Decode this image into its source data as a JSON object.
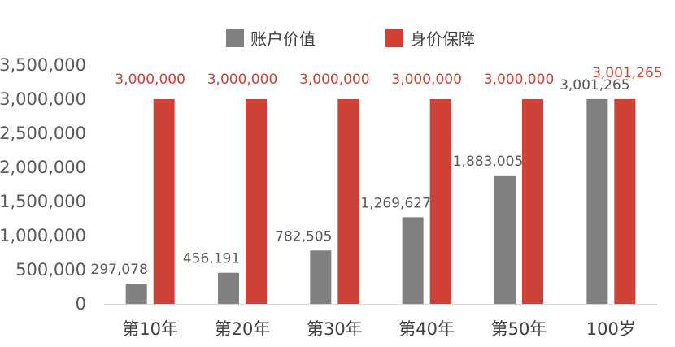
{
  "chart_data": {
    "type": "bar",
    "title": "",
    "xlabel": "",
    "ylabel": "",
    "categories": [
      "第10年",
      "第20年",
      "第30年",
      "第40年",
      "第50年",
      "100岁"
    ],
    "series": [
      {
        "name": "账户价值",
        "color": "#808080",
        "label_color": "#595959",
        "values": [
          297078,
          456191,
          782505,
          1269627,
          1883005,
          3001265
        ],
        "labels": [
          "297,078",
          "456,191",
          "782,505",
          "1,269,627",
          "1,883,005",
          "3,001,265"
        ]
      },
      {
        "name": "身价保障",
        "color": "#CF4037",
        "label_color": "#CF4037",
        "values": [
          3000000,
          3000000,
          3000000,
          3000000,
          3000000,
          3001265
        ],
        "labels": [
          "3,000,000",
          "3,000,000",
          "3,000,000",
          "3,000,000",
          "3,000,000",
          "3,001,265"
        ]
      }
    ],
    "ylim": [
      0,
      3500000
    ],
    "yticks": [
      0,
      500000,
      1000000,
      1500000,
      2000000,
      2500000,
      3000000,
      3500000
    ],
    "ytick_labels": [
      "0",
      "500,000",
      "1,000,000",
      "1,500,000",
      "2,000,000",
      "2,500,000",
      "3,000,000",
      "3,500,000"
    ],
    "grid": false,
    "legend_position": "top-center"
  }
}
